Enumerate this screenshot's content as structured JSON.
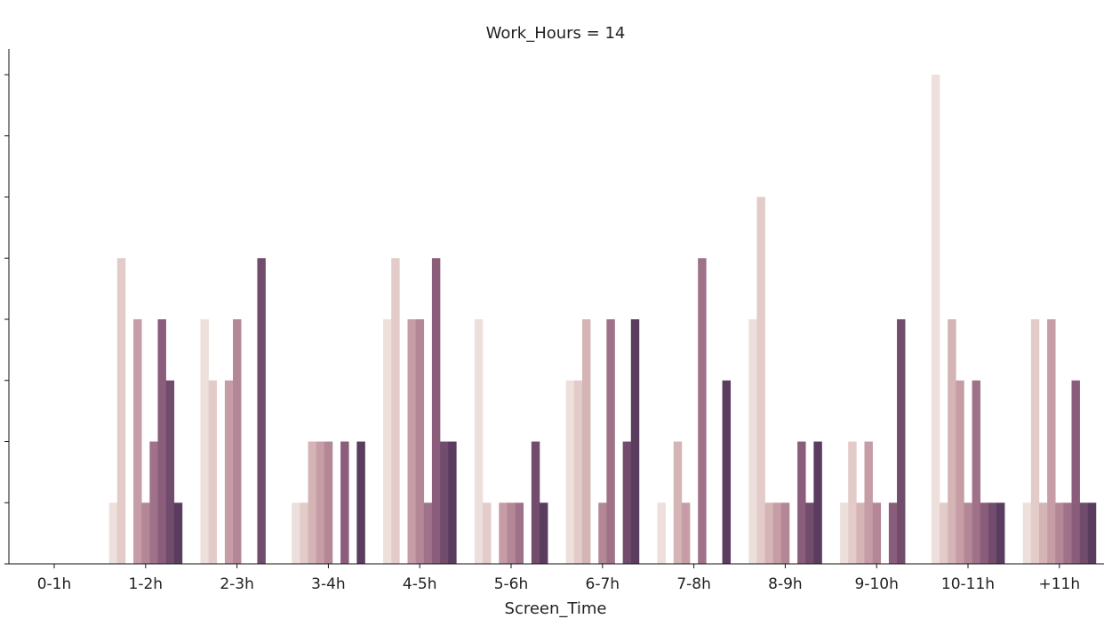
{
  "chart_data": {
    "type": "bar",
    "title": "Work_Hours = 14",
    "xlabel": "Screen_Time",
    "ylabel": "",
    "ylim": [
      0,
      8
    ],
    "grid": false,
    "legend": "none",
    "categories": [
      "0-1h",
      "1-2h",
      "2-3h",
      "3-4h",
      "4-5h",
      "5-6h",
      "6-7h",
      "7-8h",
      "8-9h",
      "9-10h",
      "10-11h",
      "+11h"
    ],
    "colors": [
      "#ecdfdc",
      "#e2cbc8",
      "#d5b4b6",
      "#c69da6",
      "#b48797",
      "#a07289",
      "#8a5e7b",
      "#724c6d",
      "#5a3c5f",
      "#432d4e",
      "#2e203c"
    ],
    "series": [
      {
        "values": [
          0,
          1,
          4,
          1,
          4,
          4,
          3,
          1,
          4,
          1,
          8,
          1
        ]
      },
      {
        "values": [
          0,
          5,
          3,
          1,
          5,
          1,
          3,
          0,
          6,
          2,
          1,
          4
        ]
      },
      {
        "values": [
          0,
          0,
          0,
          2,
          0,
          0,
          4,
          2,
          1,
          1,
          4,
          1
        ]
      },
      {
        "values": [
          0,
          4,
          3,
          2,
          4,
          1,
          0,
          1,
          1,
          2,
          3,
          4
        ]
      },
      {
        "values": [
          0,
          1,
          4,
          2,
          4,
          1,
          1,
          0,
          1,
          1,
          1,
          1
        ]
      },
      {
        "values": [
          0,
          2,
          0,
          0,
          1,
          1,
          4,
          5,
          0,
          0,
          3,
          1
        ]
      },
      {
        "values": [
          0,
          4,
          0,
          2,
          5,
          0,
          0,
          0,
          2,
          1,
          1,
          3
        ]
      },
      {
        "values": [
          0,
          3,
          5,
          0,
          2,
          2,
          2,
          0,
          1,
          4,
          1,
          1
        ]
      },
      {
        "values": [
          0,
          1,
          0,
          2,
          2,
          1,
          4,
          3,
          2,
          0,
          1,
          1
        ]
      }
    ]
  }
}
